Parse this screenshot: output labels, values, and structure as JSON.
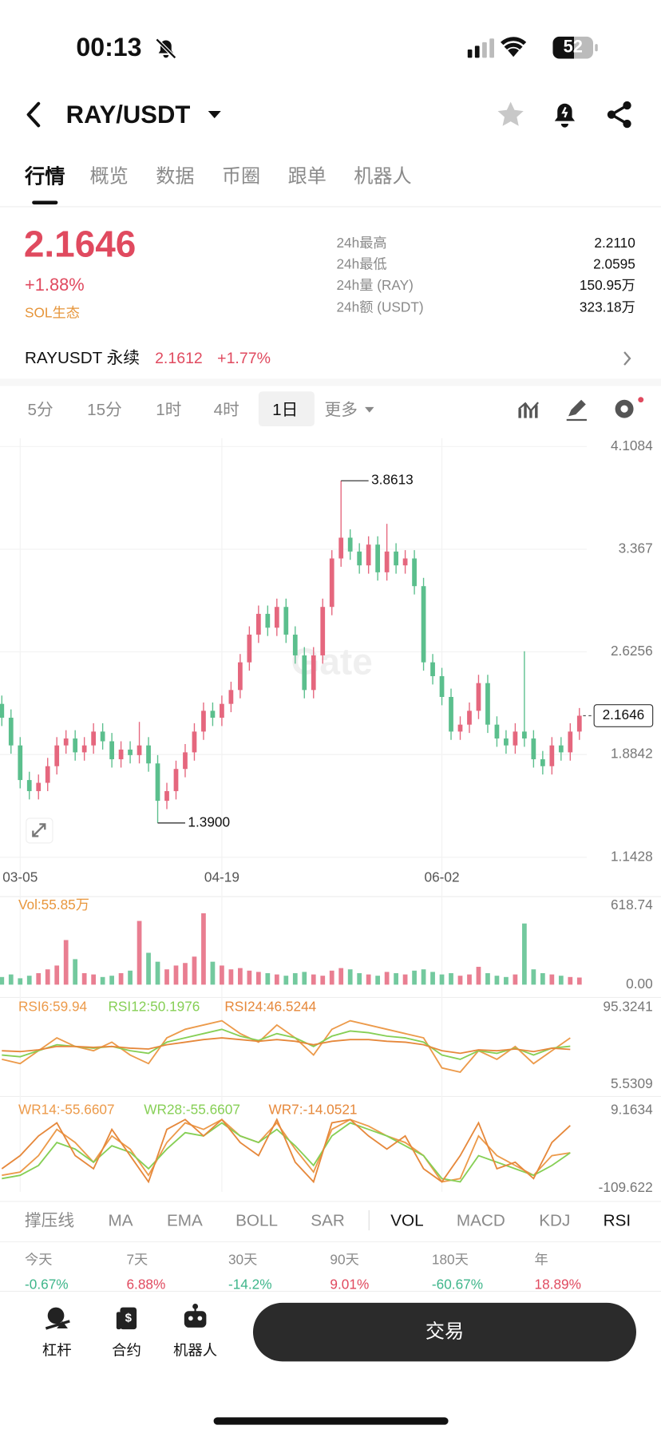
{
  "status_bar": {
    "time": "00:13",
    "battery": "52"
  },
  "header": {
    "pair": "RAY/USDT"
  },
  "tabs": [
    "行情",
    "概览",
    "数据",
    "币圈",
    "跟单",
    "机器人"
  ],
  "ticker": {
    "price": "2.1646",
    "change": "+1.88%",
    "tag": "SOL生态",
    "stats": [
      [
        "24h最高",
        "2.2110"
      ],
      [
        "24h最低",
        "2.0595"
      ],
      [
        "24h量 (RAY)",
        "150.95万"
      ],
      [
        "24h额 (USDT)",
        "323.18万"
      ]
    ]
  },
  "perpetual": {
    "name": "RAYUSDT 永续",
    "price": "2.1612",
    "change": "+1.77%"
  },
  "intervals": [
    "5分",
    "15分",
    "1时",
    "4时",
    "1日",
    "更多"
  ],
  "chart_data": {
    "type": "candlestick",
    "watermark": "Gate",
    "up_color": "#e5677e",
    "down_color": "#5bbf8d",
    "ylim": [
      1.1428,
      4.1084
    ],
    "yticks": [
      4.1084,
      3.367,
      2.6256,
      1.8842,
      1.1428
    ],
    "xticks": [
      {
        "value": 2,
        "label": "03-05"
      },
      {
        "value": 24,
        "label": "04-19"
      },
      {
        "value": 48,
        "label": "06-02"
      }
    ],
    "high_marker": 3.8613,
    "low_marker": {
      "value": 1.39,
      "label": "1.3900"
    },
    "last_price": 2.1646,
    "candles": [
      [
        2.25,
        2.31,
        2.09,
        2.15
      ],
      [
        2.15,
        2.21,
        1.89,
        1.95
      ],
      [
        1.95,
        2.01,
        1.64,
        1.7
      ],
      [
        1.7,
        1.76,
        1.56,
        1.62
      ],
      [
        1.62,
        1.74,
        1.56,
        1.68
      ],
      [
        1.68,
        1.86,
        1.62,
        1.8
      ],
      [
        1.8,
        2.01,
        1.74,
        1.95
      ],
      [
        1.95,
        2.06,
        1.89,
        2.0
      ],
      [
        2.0,
        2.06,
        1.84,
        1.9
      ],
      [
        1.9,
        2.01,
        1.84,
        1.95
      ],
      [
        1.95,
        2.11,
        1.89,
        2.05
      ],
      [
        2.05,
        2.11,
        1.92,
        1.98
      ],
      [
        1.98,
        2.04,
        1.79,
        1.85
      ],
      [
        1.85,
        1.98,
        1.79,
        1.92
      ],
      [
        1.92,
        1.98,
        1.82,
        1.88
      ],
      [
        1.88,
        2.12,
        1.82,
        1.95
      ],
      [
        1.95,
        2.01,
        1.76,
        1.82
      ],
      [
        1.82,
        1.88,
        1.39,
        1.55
      ],
      [
        1.55,
        1.68,
        1.49,
        1.62
      ],
      [
        1.62,
        1.84,
        1.56,
        1.78
      ],
      [
        1.78,
        1.96,
        1.72,
        1.9
      ],
      [
        1.9,
        2.11,
        1.84,
        2.05
      ],
      [
        2.05,
        2.26,
        1.99,
        2.2
      ],
      [
        2.2,
        2.26,
        2.09,
        2.15
      ],
      [
        2.15,
        2.31,
        2.09,
        2.25
      ],
      [
        2.25,
        2.41,
        2.19,
        2.35
      ],
      [
        2.35,
        2.61,
        2.29,
        2.55
      ],
      [
        2.55,
        2.81,
        2.49,
        2.75
      ],
      [
        2.75,
        2.96,
        2.69,
        2.9
      ],
      [
        2.9,
        2.96,
        2.74,
        2.8
      ],
      [
        2.8,
        3.01,
        2.74,
        2.95
      ],
      [
        2.95,
        3.01,
        2.69,
        2.75
      ],
      [
        2.75,
        2.81,
        2.54,
        2.6
      ],
      [
        2.6,
        2.66,
        2.29,
        2.35
      ],
      [
        2.35,
        2.66,
        2.29,
        2.6
      ],
      [
        2.6,
        3.01,
        2.54,
        2.95
      ],
      [
        2.95,
        3.36,
        2.89,
        3.3
      ],
      [
        3.3,
        3.8613,
        3.24,
        3.45
      ],
      [
        3.45,
        3.51,
        3.29,
        3.35
      ],
      [
        3.35,
        3.41,
        3.19,
        3.25
      ],
      [
        3.25,
        3.46,
        3.19,
        3.4
      ],
      [
        3.4,
        3.46,
        3.14,
        3.2
      ],
      [
        3.2,
        3.55,
        3.14,
        3.35
      ],
      [
        3.35,
        3.41,
        3.19,
        3.25
      ],
      [
        3.25,
        3.36,
        3.19,
        3.3
      ],
      [
        3.3,
        3.36,
        3.04,
        3.1
      ],
      [
        3.1,
        3.16,
        2.49,
        2.55
      ],
      [
        2.55,
        2.61,
        2.39,
        2.45
      ],
      [
        2.45,
        2.51,
        2.24,
        2.3
      ],
      [
        2.3,
        2.36,
        1.99,
        2.05
      ],
      [
        2.05,
        2.16,
        1.99,
        2.1
      ],
      [
        2.1,
        2.26,
        2.04,
        2.2
      ],
      [
        2.2,
        2.46,
        2.14,
        2.4
      ],
      [
        2.4,
        2.46,
        2.04,
        2.1
      ],
      [
        2.1,
        2.16,
        1.94,
        2.0
      ],
      [
        2.0,
        2.06,
        1.89,
        1.95
      ],
      [
        1.95,
        2.11,
        1.89,
        2.05
      ],
      [
        2.05,
        2.63,
        1.94,
        2.0
      ],
      [
        2.0,
        2.06,
        1.79,
        1.85
      ],
      [
        1.85,
        1.91,
        1.74,
        1.8
      ],
      [
        1.8,
        2.01,
        1.74,
        1.95
      ],
      [
        1.95,
        2.01,
        1.84,
        1.9
      ],
      [
        1.9,
        2.11,
        1.84,
        2.05
      ],
      [
        2.05,
        2.22,
        1.99,
        2.1646
      ]
    ],
    "volume": {
      "label": "Vol:55.85万",
      "ylim": [
        0,
        618.74
      ],
      "yticks": [
        618.74,
        {
          "value": 0,
          "label": "0.00"
        }
      ],
      "values": [
        60,
        80,
        50,
        70,
        90,
        120,
        150,
        350,
        200,
        90,
        80,
        60,
        70,
        90,
        110,
        500,
        250,
        180,
        120,
        150,
        170,
        220,
        560,
        180,
        150,
        120,
        130,
        110,
        100,
        90,
        80,
        70,
        90,
        100,
        80,
        70,
        110,
        130,
        120,
        90,
        80,
        70,
        100,
        90,
        80,
        110,
        120,
        100,
        80,
        90,
        70,
        80,
        140,
        90,
        70,
        60,
        80,
        480,
        120,
        90,
        80,
        70,
        60,
        55.85
      ]
    },
    "rsi": {
      "ylim": [
        5.5309,
        95.3241
      ],
      "yticks": [
        95.3241,
        5.5309
      ],
      "x": [
        0,
        2,
        4,
        6,
        8,
        10,
        12,
        14,
        16,
        18,
        20,
        22,
        24,
        26,
        28,
        30,
        32,
        34,
        36,
        38,
        40,
        42,
        44,
        46,
        48,
        50,
        52,
        54,
        56,
        58,
        60,
        62
      ],
      "series": [
        {
          "name": "RSI6:59.94",
          "color": "#ec9a4a",
          "values": [
            35,
            30,
            45,
            60,
            50,
            45,
            55,
            40,
            30,
            60,
            70,
            75,
            80,
            65,
            55,
            75,
            60,
            40,
            70,
            80,
            75,
            70,
            65,
            60,
            25,
            20,
            45,
            35,
            50,
            30,
            45,
            59.94
          ]
        },
        {
          "name": "RSI12:50.1976",
          "color": "#86cf55",
          "values": [
            40,
            38,
            45,
            52,
            50,
            48,
            50,
            45,
            42,
            55,
            60,
            65,
            70,
            62,
            57,
            65,
            60,
            50,
            62,
            68,
            66,
            62,
            60,
            55,
            40,
            35,
            45,
            42,
            48,
            40,
            48,
            50.1976
          ]
        },
        {
          "name": "RSI24:46.5244",
          "color": "#e6883b",
          "values": [
            45,
            44,
            46,
            50,
            50,
            49,
            50,
            48,
            47,
            52,
            55,
            58,
            60,
            58,
            56,
            58,
            56,
            52,
            56,
            58,
            58,
            56,
            55,
            52,
            45,
            42,
            46,
            45,
            47,
            44,
            48,
            46.5244
          ]
        }
      ]
    },
    "wr": {
      "ylim": [
        -109.622,
        9.1634
      ],
      "yticks": [
        9.1634,
        -109.622
      ],
      "x": [
        0,
        2,
        4,
        6,
        8,
        10,
        12,
        14,
        16,
        18,
        20,
        22,
        24,
        26,
        28,
        30,
        32,
        34,
        36,
        38,
        40,
        42,
        44,
        46,
        48,
        50,
        52,
        54,
        56,
        58,
        60,
        62
      ],
      "series": [
        {
          "name": "WR14:-55.6607",
          "color": "#ec9a4a",
          "values": [
            -90,
            -85,
            -60,
            -20,
            -40,
            -70,
            -30,
            -50,
            -90,
            -40,
            -10,
            -20,
            -5,
            -30,
            -40,
            -10,
            -50,
            -85,
            -20,
            -5,
            -15,
            -30,
            -40,
            -60,
            -100,
            -95,
            -30,
            -60,
            -75,
            -90,
            -60,
            -55.6607
          ]
        },
        {
          "name": "WR28:-55.6607",
          "color": "#86cf55",
          "values": [
            -95,
            -90,
            -75,
            -40,
            -50,
            -70,
            -45,
            -55,
            -80,
            -50,
            -25,
            -30,
            -10,
            -30,
            -40,
            -20,
            -45,
            -75,
            -30,
            -10,
            -20,
            -30,
            -45,
            -60,
            -95,
            -100,
            -60,
            -70,
            -80,
            -90,
            -75,
            -55.6607
          ]
        },
        {
          "name": "WR7:-14.0521",
          "color": "#e6883b",
          "values": [
            -80,
            -60,
            -30,
            -10,
            -60,
            -80,
            -20,
            -60,
            -100,
            -20,
            -5,
            -30,
            -5,
            -40,
            -60,
            -5,
            -70,
            -100,
            -10,
            -5,
            -30,
            -50,
            -30,
            -80,
            -100,
            -60,
            -10,
            -80,
            -70,
            -95,
            -40,
            -14.0521
          ]
        }
      ]
    }
  },
  "indicator_tabs": [
    "撑压线",
    "MA",
    "EMA",
    "BOLL",
    "SAR",
    "VOL",
    "MACD",
    "KDJ",
    "RSI"
  ],
  "performance": [
    {
      "period": "今天",
      "change": "-0.67%"
    },
    {
      "period": "7天",
      "change": "6.88%"
    },
    {
      "period": "30天",
      "change": "-14.2%"
    },
    {
      "period": "90天",
      "change": "9.01%"
    },
    {
      "period": "180天",
      "change": "-60.67%"
    },
    {
      "period": "年",
      "change": "18.89%"
    }
  ],
  "bottom_bar": {
    "buttons": [
      "杠杆",
      "合约",
      "机器人"
    ],
    "trade": "交易"
  }
}
